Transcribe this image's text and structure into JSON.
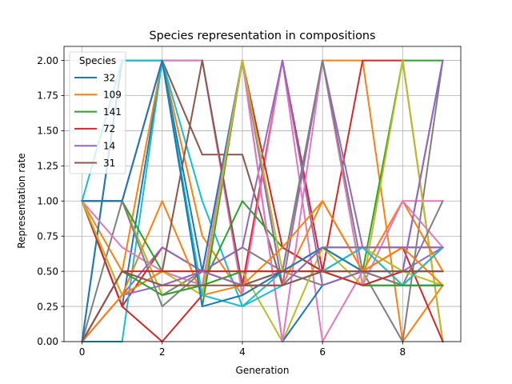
{
  "chart_data": {
    "type": "line",
    "title": "Species representation in compositions",
    "xlabel": "Generation",
    "ylabel": "Representation rate",
    "xlim": [
      -0.45,
      9.45
    ],
    "ylim": [
      0,
      2.1
    ],
    "xticks": [
      0,
      2,
      4,
      6,
      8
    ],
    "yticks": [
      0.0,
      0.25,
      0.5,
      0.75,
      1.0,
      1.25,
      1.5,
      1.75,
      2.0
    ],
    "ytick_labels": [
      "0.00",
      "0.25",
      "0.50",
      "0.75",
      "1.00",
      "1.25",
      "1.50",
      "1.75",
      "2.00"
    ],
    "grid": true,
    "legend": {
      "title": "Species",
      "position": "upper-left"
    },
    "x": [
      0,
      1,
      2,
      3,
      4,
      5,
      6,
      7,
      8,
      9
    ],
    "series": [
      {
        "name": "32",
        "color": "#1f77b4",
        "legend": true,
        "values": [
          1,
          0.25,
          2,
          2,
          0.4,
          0.5,
          2,
          0.4,
          0.5,
          2
        ]
      },
      {
        "name": "109",
        "color": "#ff7f0e",
        "legend": true,
        "values": [
          1,
          0.5,
          2,
          0.75,
          0.33,
          0.5,
          2,
          2,
          0,
          0.4
        ]
      },
      {
        "name": "141",
        "color": "#2ca02c",
        "legend": true,
        "values": [
          0,
          2,
          2,
          0.25,
          2,
          0.4,
          0.67,
          0.5,
          2,
          2
        ]
      },
      {
        "name": "72",
        "color": "#d62728",
        "legend": true,
        "values": [
          1,
          0.25,
          0.67,
          0.5,
          0.4,
          2,
          0.5,
          2,
          2,
          0
        ]
      },
      {
        "name": "14",
        "color": "#9467bd",
        "legend": true,
        "values": [
          0,
          0.33,
          0.67,
          0.5,
          2,
          0.4,
          2,
          0.67,
          0.5,
          0.67
        ]
      },
      {
        "name": "31",
        "color": "#8c564b",
        "legend": true,
        "values": [
          1,
          1,
          2,
          1.33,
          1.33,
          0.4,
          0.5,
          0.67,
          0.67,
          0.67
        ]
      },
      {
        "name": "",
        "color": "#e377c2",
        "legend": false,
        "values": [
          1,
          1,
          2,
          2,
          0.33,
          2,
          0,
          0.5,
          1,
          1
        ]
      },
      {
        "name": "",
        "color": "#7f7f7f",
        "legend": false,
        "values": [
          0,
          1,
          0.33,
          0.5,
          0.67,
          0.5,
          0.4,
          0.5,
          0,
          2
        ]
      },
      {
        "name": "",
        "color": "#bcbd22",
        "legend": false,
        "values": [
          1,
          1,
          0.33,
          0.4,
          0.5,
          0,
          0.67,
          0.4,
          2,
          0
        ]
      },
      {
        "name": "",
        "color": "#17becf",
        "legend": false,
        "values": [
          0,
          0,
          2,
          1,
          0.25,
          0.5,
          0.67,
          0.67,
          0.4,
          0.4
        ]
      },
      {
        "name": "",
        "color": "#1f77b4",
        "legend": false,
        "values": [
          0,
          2,
          2,
          0.5,
          2,
          0,
          0.4,
          0.5,
          0.4,
          0.4
        ]
      },
      {
        "name": "",
        "color": "#ff7f0e",
        "legend": false,
        "values": [
          1,
          0.33,
          1,
          0.33,
          0.4,
          0.4,
          1,
          0.5,
          1,
          0.5
        ]
      },
      {
        "name": "",
        "color": "#2ca02c",
        "legend": false,
        "values": [
          1,
          1,
          0.5,
          0.4,
          1,
          0.67,
          0.5,
          0.4,
          0.4,
          0.67
        ]
      },
      {
        "name": "",
        "color": "#d62728",
        "legend": false,
        "values": [
          1,
          0.25,
          0,
          0.33,
          2,
          0.67,
          0.5,
          0.5,
          0.67,
          0
        ]
      },
      {
        "name": "",
        "color": "#9467bd",
        "legend": false,
        "values": [
          0,
          0.33,
          0.4,
          0.5,
          0.67,
          2,
          0.4,
          0.5,
          0.5,
          2
        ]
      },
      {
        "name": "",
        "color": "#8c564b",
        "legend": false,
        "values": [
          1,
          0.33,
          0.5,
          2,
          0.4,
          0.5,
          0.5,
          0.5,
          0.4,
          0.67
        ]
      },
      {
        "name": "",
        "color": "#e377c2",
        "legend": false,
        "values": [
          1,
          0.67,
          0.5,
          0.4,
          2,
          0,
          2,
          0.4,
          1,
          0.67
        ]
      },
      {
        "name": "",
        "color": "#7f7f7f",
        "legend": false,
        "values": [
          1,
          1,
          0.25,
          0.5,
          0.5,
          0.5,
          2,
          0.5,
          0.4,
          1
        ]
      },
      {
        "name": "",
        "color": "#bcbd22",
        "legend": false,
        "values": [
          1,
          0.33,
          0.5,
          0.33,
          2,
          0.5,
          0.67,
          0.67,
          0.5,
          0.4
        ]
      },
      {
        "name": "",
        "color": "#17becf",
        "legend": false,
        "values": [
          1,
          2,
          2,
          0.33,
          0.25,
          0.4,
          0.5,
          0.67,
          0.4,
          0.67
        ]
      },
      {
        "name": "",
        "color": "#1f77b4",
        "legend": false,
        "values": [
          1,
          1,
          2,
          0.25,
          0.33,
          0.5,
          0.67,
          0.5,
          0.5,
          0.5
        ]
      },
      {
        "name": "",
        "color": "#ff7f0e",
        "legend": false,
        "values": [
          0,
          0.33,
          0.5,
          0.5,
          0.4,
          0.67,
          1,
          0.5,
          0.67,
          0.4
        ]
      },
      {
        "name": "",
        "color": "#2ca02c",
        "legend": false,
        "values": [
          0,
          0.5,
          0.33,
          0.4,
          0.5,
          0.5,
          0.5,
          0.4,
          0.4,
          0.4
        ]
      },
      {
        "name": "",
        "color": "#d62728",
        "legend": false,
        "values": [
          0,
          0.5,
          0.5,
          0.5,
          0.5,
          0.5,
          0.5,
          0.4,
          0.5,
          0.5
        ]
      },
      {
        "name": "",
        "color": "#9467bd",
        "legend": false,
        "values": [
          0,
          0.5,
          0.4,
          0.5,
          0.4,
          0.4,
          0.67,
          0.67,
          0.67,
          0.67
        ]
      },
      {
        "name": "",
        "color": "#8c564b",
        "legend": false,
        "values": [
          0,
          0.5,
          0.4,
          0.4,
          0.4,
          0.4,
          0.5,
          0.5,
          0.5,
          0.5
        ]
      }
    ]
  }
}
